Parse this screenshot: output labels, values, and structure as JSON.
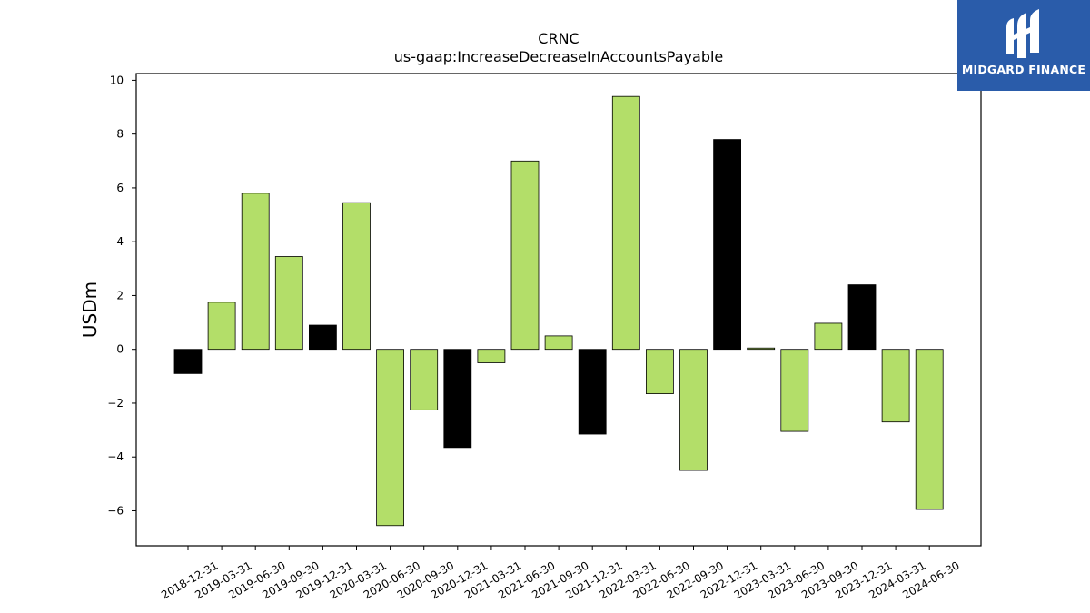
{
  "logo": {
    "text": "MIDGARD FINANCE",
    "background": "#2a5caa"
  },
  "chart_data": {
    "type": "bar",
    "title": "CRNC",
    "subtitle": "us-gaap:IncreaseDecreaseInAccountsPayable",
    "xlabel": "",
    "ylabel": "USDm",
    "ylim": [
      -7.3,
      10.25
    ],
    "yticks": [
      -6,
      -4,
      -2,
      0,
      2,
      4,
      6,
      8,
      10
    ],
    "ytick_labels": [
      "−6",
      "−4",
      "−2",
      "0",
      "2",
      "4",
      "6",
      "8",
      "10"
    ],
    "grid": false,
    "colors": {
      "quarterly": "#b3de69",
      "annual": "#000000"
    },
    "categories": [
      "2018-12-31",
      "2019-03-31",
      "2019-06-30",
      "2019-09-30",
      "2019-12-31",
      "2020-03-31",
      "2020-06-30",
      "2020-09-30",
      "2020-12-31",
      "2021-03-31",
      "2021-06-30",
      "2021-09-30",
      "2021-12-31",
      "2022-03-31",
      "2022-06-30",
      "2022-09-30",
      "2022-12-31",
      "2023-03-31",
      "2023-06-30",
      "2023-09-30",
      "2023-12-31",
      "2024-03-31",
      "2024-06-30"
    ],
    "values": [
      -0.9,
      1.75,
      5.8,
      3.45,
      0.9,
      5.45,
      -6.55,
      -2.25,
      -3.65,
      -0.5,
      7.0,
      0.5,
      -3.15,
      9.4,
      -1.65,
      -4.5,
      7.8,
      0.05,
      -3.05,
      0.97,
      2.4,
      -2.7,
      -5.95
    ],
    "bar_kind": [
      "annual",
      "quarterly",
      "quarterly",
      "quarterly",
      "annual",
      "quarterly",
      "quarterly",
      "quarterly",
      "annual",
      "quarterly",
      "quarterly",
      "quarterly",
      "annual",
      "quarterly",
      "quarterly",
      "quarterly",
      "annual",
      "quarterly",
      "quarterly",
      "quarterly",
      "annual",
      "quarterly",
      "quarterly"
    ]
  }
}
